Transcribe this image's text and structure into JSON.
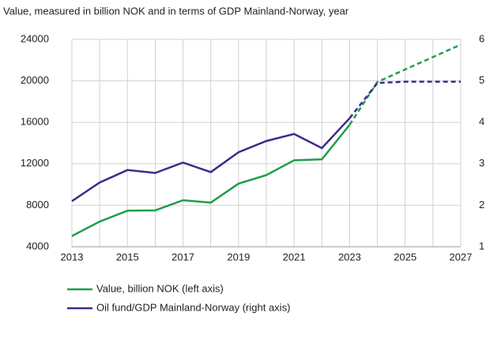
{
  "chart_data": {
    "type": "line",
    "title": "Value, measured in billion NOK and in terms of GDP Mainland-Norway, year",
    "x": [
      2013,
      2014,
      2015,
      2016,
      2017,
      2018,
      2019,
      2020,
      2021,
      2022,
      2023,
      2024,
      2025,
      2026,
      2027
    ],
    "xlim": [
      2013,
      2027
    ],
    "xticks": [
      2013,
      2015,
      2017,
      2019,
      2021,
      2023,
      2025,
      2027
    ],
    "ylim": [
      4000,
      24000
    ],
    "yticks": [
      4000,
      8000,
      12000,
      16000,
      20000,
      24000
    ],
    "y2lim": [
      1,
      6
    ],
    "y2ticks": [
      1,
      2,
      3,
      4,
      5,
      6
    ],
    "grid": true,
    "dashed_from": 2023,
    "series": [
      {
        "name": "Value, billion NOK (left axis)",
        "color": "#1f9e4a",
        "axis": "y",
        "values": [
          5038,
          6431,
          7475,
          7510,
          8488,
          8256,
          10088,
          10914,
          12340,
          12429,
          15765,
          19900,
          21100,
          22300,
          23500
        ]
      },
      {
        "name": "Oil fund/GDP Mainland-Norway (right axis)",
        "color": "#3d2a8c",
        "axis": "y2",
        "values": [
          2.1,
          2.55,
          2.85,
          2.78,
          3.03,
          2.8,
          3.28,
          3.55,
          3.72,
          3.38,
          4.1,
          4.95,
          4.98,
          4.98,
          4.98
        ]
      }
    ]
  }
}
